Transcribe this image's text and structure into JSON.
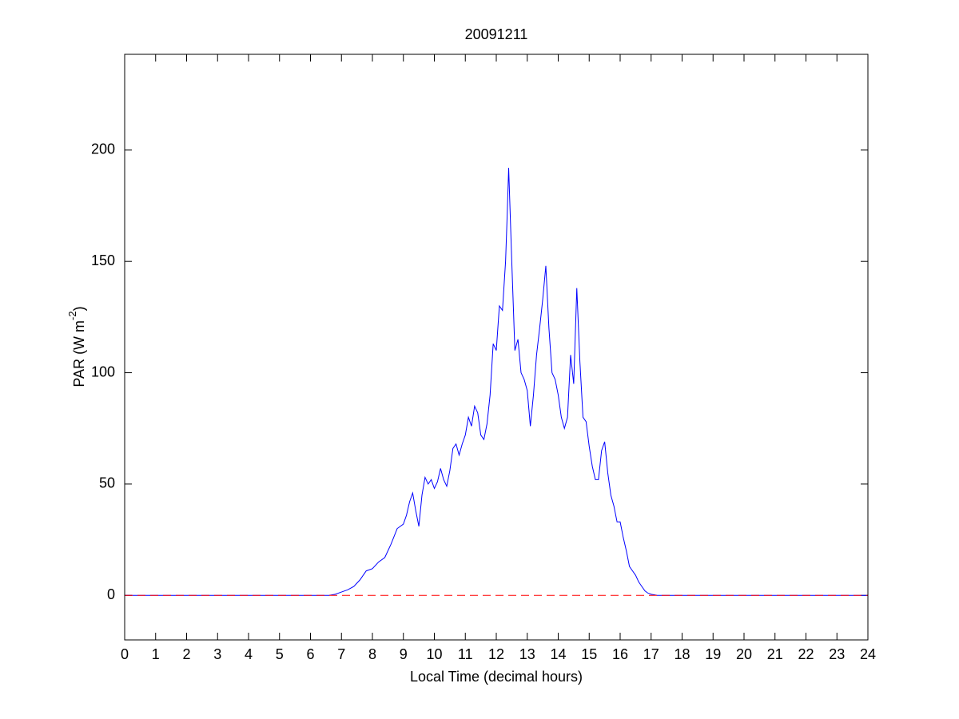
{
  "chart_data": {
    "type": "line",
    "title": "20091211",
    "xlabel": "Local Time (decimal hours)",
    "ylabel": [
      "PAR (W m",
      "-2",
      ")"
    ],
    "x": [
      0,
      6.6,
      6.8,
      7.0,
      7.2,
      7.4,
      7.6,
      7.8,
      8.0,
      8.2,
      8.4,
      8.6,
      8.8,
      9.0,
      9.1,
      9.2,
      9.3,
      9.4,
      9.5,
      9.6,
      9.7,
      9.8,
      9.9,
      10.0,
      10.1,
      10.2,
      10.3,
      10.4,
      10.5,
      10.6,
      10.7,
      10.8,
      10.9,
      11.0,
      11.1,
      11.2,
      11.3,
      11.4,
      11.5,
      11.6,
      11.7,
      11.8,
      11.9,
      12.0,
      12.1,
      12.2,
      12.3,
      12.35,
      12.4,
      12.5,
      12.6,
      12.7,
      12.8,
      12.9,
      13.0,
      13.1,
      13.2,
      13.3,
      13.4,
      13.5,
      13.6,
      13.7,
      13.8,
      13.9,
      14.0,
      14.1,
      14.2,
      14.3,
      14.4,
      14.5,
      14.6,
      14.7,
      14.8,
      14.9,
      15.0,
      15.1,
      15.2,
      15.3,
      15.4,
      15.5,
      15.6,
      15.7,
      15.8,
      15.9,
      16.0,
      16.1,
      16.2,
      16.3,
      16.4,
      16.5,
      16.6,
      16.7,
      16.8,
      16.9,
      17.0,
      17.2,
      24
    ],
    "series": [
      {
        "name": "PAR",
        "color": "#0000ff",
        "values": [
          0,
          0,
          0.5,
          1.5,
          2.5,
          4,
          7,
          11,
          12,
          15,
          17,
          23,
          30,
          32,
          36,
          42,
          46,
          38,
          31,
          45,
          53,
          50,
          52,
          48,
          51,
          57,
          52,
          49,
          56,
          66,
          68,
          63,
          68,
          72,
          80,
          76,
          85,
          82,
          72,
          70,
          77,
          90,
          113,
          110,
          130,
          128,
          150,
          170,
          192,
          150,
          110,
          115,
          100,
          97,
          92,
          76,
          90,
          108,
          120,
          133,
          148,
          120,
          100,
          97,
          90,
          80,
          75,
          80,
          108,
          95,
          138,
          105,
          80,
          78,
          67,
          58,
          52,
          52,
          65,
          69,
          55,
          45,
          40,
          33,
          33,
          26,
          20,
          13,
          11,
          9,
          6,
          4,
          2,
          1,
          0.5,
          0,
          0
        ]
      }
    ],
    "hline": {
      "y": 0,
      "color": "#ff0000",
      "style": "dashed"
    },
    "xlim": [
      0,
      24
    ],
    "xticks": [
      0,
      1,
      2,
      3,
      4,
      5,
      6,
      7,
      8,
      9,
      10,
      11,
      12,
      13,
      14,
      15,
      16,
      17,
      18,
      19,
      20,
      21,
      22,
      23,
      24
    ],
    "ylim": [
      -20,
      243
    ],
    "yticks": [
      0,
      50,
      100,
      150,
      200
    ]
  }
}
